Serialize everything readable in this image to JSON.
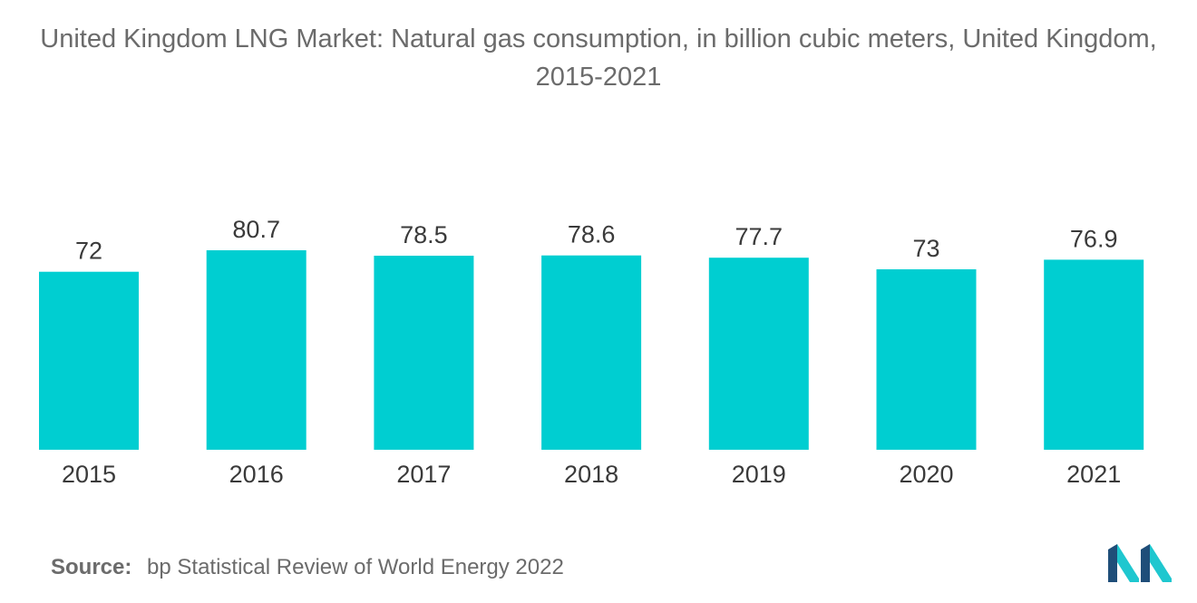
{
  "title": "United Kingdom LNG Market: Natural gas consumption, in billion cubic meters, United Kingdom, 2015-2021",
  "source": {
    "label": "Source:",
    "text": "bp Statistical Review of World Energy 2022"
  },
  "colors": {
    "bar": "#00CED1",
    "logo_dark": "#1f4e79",
    "logo_light": "#1fc7cf"
  },
  "logo_icon": "mordor-intelligence-logo",
  "chart_data": {
    "type": "bar",
    "categories": [
      "2015",
      "2016",
      "2017",
      "2018",
      "2019",
      "2020",
      "2021"
    ],
    "values": [
      72,
      80.7,
      78.5,
      78.6,
      77.7,
      73,
      76.9
    ],
    "value_labels": [
      "72",
      "80.7",
      "78.5",
      "78.6",
      "77.7",
      "73",
      "76.9"
    ],
    "title": "United Kingdom LNG Market: Natural gas consumption, in billion cubic meters, United Kingdom, 2015-2021",
    "xlabel": "",
    "ylabel": "",
    "grid": false,
    "legend": "none",
    "ylim": [
      0,
      80.7
    ]
  }
}
